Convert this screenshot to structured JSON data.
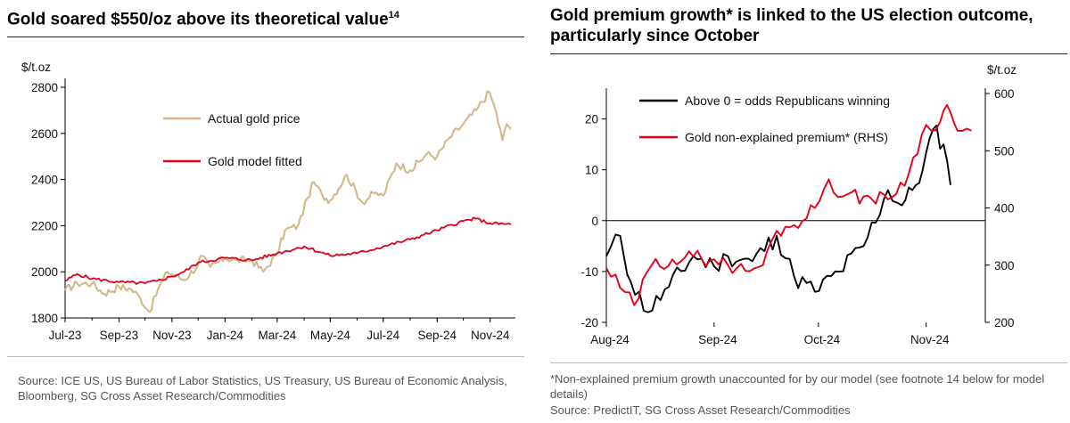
{
  "left": {
    "title": "Gold soared $550/oz above its theoretical value",
    "title_sup": "14",
    "source": "Source: ICE US, US Bureau of Labor Statistics, US Treasury, US Bureau of Economic Analysis, Bloomberg, SG Cross Asset Research/Commodities"
  },
  "right": {
    "title_line1": "Gold premium growth* is linked to the US election outcome,",
    "title_line2": "particularly since October",
    "footnote": "*Non-explained premium growth unaccounted for by our model (see footnote 14 below for model details)",
    "source": "Source: PredictIT, SG Cross Asset Research/Commodities"
  },
  "colors": {
    "gold": "#d2b98c",
    "red": "#e2001a",
    "black": "#000000"
  },
  "chart_data": [
    {
      "type": "line",
      "title": "Gold soared $550/oz above its theoretical value",
      "ylabel": "$/t.oz",
      "ylim": [
        1800,
        2800
      ],
      "yticks": [
        1800,
        2000,
        2200,
        2400,
        2600,
        2800
      ],
      "x_tick_labels": [
        "Jul-23",
        "Sep-23",
        "Nov-23",
        "Jan-24",
        "Mar-24",
        "May-24",
        "Jul-24",
        "Sep-24",
        "Nov-24"
      ],
      "legend_position": "upper-left-inside",
      "series": [
        {
          "name": "Actual gold price",
          "color": "#d2b98c",
          "points": [
            [
              "2023-07-01",
              1920
            ],
            [
              "2023-07-15",
              1950
            ],
            [
              "2023-08-01",
              1950
            ],
            [
              "2023-08-15",
              1905
            ],
            [
              "2023-09-01",
              1935
            ],
            [
              "2023-09-15",
              1925
            ],
            [
              "2023-09-25",
              1890
            ],
            [
              "2023-10-06",
              1825
            ],
            [
              "2023-10-16",
              1925
            ],
            [
              "2023-10-27",
              2000
            ],
            [
              "2023-11-15",
              1965
            ],
            [
              "2023-12-01",
              2030
            ],
            [
              "2023-12-04",
              2070
            ],
            [
              "2023-12-15",
              2020
            ],
            [
              "2024-01-01",
              2060
            ],
            [
              "2024-01-15",
              2050
            ],
            [
              "2024-02-01",
              2050
            ],
            [
              "2024-02-14",
              2000
            ],
            [
              "2024-03-01",
              2080
            ],
            [
              "2024-03-10",
              2180
            ],
            [
              "2024-03-25",
              2200
            ],
            [
              "2024-04-05",
              2320
            ],
            [
              "2024-04-12",
              2390
            ],
            [
              "2024-04-22",
              2330
            ],
            [
              "2024-05-01",
              2310
            ],
            [
              "2024-05-20",
              2420
            ],
            [
              "2024-06-07",
              2300
            ],
            [
              "2024-06-20",
              2340
            ],
            [
              "2024-07-01",
              2330
            ],
            [
              "2024-07-16",
              2470
            ],
            [
              "2024-08-01",
              2440
            ],
            [
              "2024-08-20",
              2510
            ],
            [
              "2024-09-01",
              2500
            ],
            [
              "2024-09-15",
              2580
            ],
            [
              "2024-10-01",
              2640
            ],
            [
              "2024-10-16",
              2700
            ],
            [
              "2024-10-31",
              2780
            ],
            [
              "2024-11-08",
              2690
            ],
            [
              "2024-11-15",
              2570
            ],
            [
              "2024-11-20",
              2640
            ],
            [
              "2024-11-25",
              2620
            ]
          ]
        },
        {
          "name": "Gold model fitted",
          "color": "#e2001a",
          "points": [
            [
              "2023-07-01",
              1960
            ],
            [
              "2023-07-15",
              1990
            ],
            [
              "2023-08-01",
              1970
            ],
            [
              "2023-09-01",
              1955
            ],
            [
              "2023-10-01",
              1950
            ],
            [
              "2023-10-15",
              1960
            ],
            [
              "2023-11-01",
              1980
            ],
            [
              "2023-11-15",
              2000
            ],
            [
              "2023-12-01",
              2040
            ],
            [
              "2024-01-01",
              2060
            ],
            [
              "2024-02-01",
              2050
            ],
            [
              "2024-03-01",
              2080
            ],
            [
              "2024-04-01",
              2110
            ],
            [
              "2024-05-01",
              2070
            ],
            [
              "2024-06-01",
              2080
            ],
            [
              "2024-07-01",
              2110
            ],
            [
              "2024-08-01",
              2140
            ],
            [
              "2024-09-01",
              2180
            ],
            [
              "2024-10-01",
              2220
            ],
            [
              "2024-10-15",
              2230
            ],
            [
              "2024-11-01",
              2210
            ],
            [
              "2024-11-25",
              2205
            ]
          ]
        }
      ]
    },
    {
      "type": "line",
      "title": "Gold premium growth* is linked to the US election outcome, particularly since October",
      "ylim": [
        -20,
        25
      ],
      "yticks": [
        -20,
        -10,
        0,
        10,
        20
      ],
      "y2label": "$/t.oz",
      "y2lim": [
        200,
        600
      ],
      "y2ticks": [
        200,
        300,
        400,
        500,
        600
      ],
      "x_tick_labels": [
        "Aug-24",
        "Sep-24",
        "Oct-24",
        "Nov-24"
      ],
      "legend_position": "upper-left-inside",
      "series": [
        {
          "name": "Above 0 = odds Republicans winning",
          "axis": "left",
          "color": "#000000",
          "points": [
            [
              "2024-08-01",
              -7
            ],
            [
              "2024-08-05",
              -3
            ],
            [
              "2024-08-08",
              -12
            ],
            [
              "2024-08-13",
              -18
            ],
            [
              "2024-08-19",
              -13
            ],
            [
              "2024-08-26",
              -7
            ],
            [
              "2024-09-01",
              -9
            ],
            [
              "2024-09-05",
              -7
            ],
            [
              "2024-09-12",
              -8
            ],
            [
              "2024-09-19",
              -3
            ],
            [
              "2024-09-24",
              -11
            ],
            [
              "2024-09-30",
              -14
            ],
            [
              "2024-10-07",
              -10
            ],
            [
              "2024-10-14",
              -5
            ],
            [
              "2024-10-21",
              6
            ],
            [
              "2024-10-25",
              3
            ],
            [
              "2024-10-28",
              6
            ],
            [
              "2024-10-31",
              10
            ],
            [
              "2024-11-03",
              18
            ],
            [
              "2024-11-06",
              15
            ],
            [
              "2024-11-08",
              7
            ]
          ]
        },
        {
          "name": "Gold non-explained premium* (RHS)",
          "axis": "right",
          "color": "#e2001a",
          "points": [
            [
              "2024-08-01",
              295
            ],
            [
              "2024-08-05",
              260
            ],
            [
              "2024-08-09",
              230
            ],
            [
              "2024-08-14",
              300
            ],
            [
              "2024-08-20",
              310
            ],
            [
              "2024-08-26",
              315
            ],
            [
              "2024-09-01",
              310
            ],
            [
              "2024-09-05",
              300
            ],
            [
              "2024-09-10",
              290
            ],
            [
              "2024-09-15",
              300
            ],
            [
              "2024-09-19",
              360
            ],
            [
              "2024-09-24",
              370
            ],
            [
              "2024-09-30",
              400
            ],
            [
              "2024-10-04",
              450
            ],
            [
              "2024-10-08",
              420
            ],
            [
              "2024-10-14",
              420
            ],
            [
              "2024-10-21",
              415
            ],
            [
              "2024-10-27",
              460
            ],
            [
              "2024-11-01",
              545
            ],
            [
              "2024-11-05",
              550
            ],
            [
              "2024-11-07",
              580
            ],
            [
              "2024-11-10",
              535
            ],
            [
              "2024-11-14",
              535
            ]
          ]
        }
      ]
    }
  ]
}
